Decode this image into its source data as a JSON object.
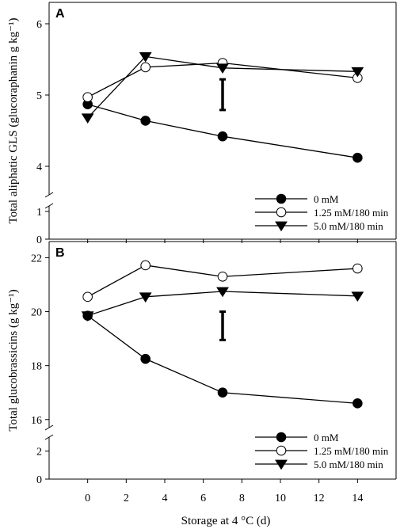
{
  "figure": {
    "xlabel": "Storage at 4 °C (d)",
    "xticks": [
      "0",
      "2",
      "4",
      "6",
      "8",
      "10",
      "12",
      "14"
    ]
  },
  "chart_data": [
    {
      "type": "line",
      "panel_label": "A",
      "ylabel": "Total aliphatic GLS (glucoraphanin g kg⁻¹)",
      "xlim": [
        -2,
        16
      ],
      "ylim_upper": [
        3.6,
        6.3
      ],
      "ylim_lower": [
        0,
        1.2
      ],
      "axis_break": true,
      "yticks_upper": [
        "4",
        "5",
        "6"
      ],
      "yticks_lower": [
        "0",
        "1"
      ],
      "x": [
        0,
        3,
        7,
        14
      ],
      "series": [
        {
          "name": "0 mM",
          "marker": "filled-circle",
          "values": [
            4.87,
            4.64,
            4.42,
            4.12
          ]
        },
        {
          "name": "1.25 mM/180 min",
          "marker": "open-circle",
          "values": [
            4.97,
            5.39,
            5.45,
            5.24
          ]
        },
        {
          "name": "5.0 mM/180 min",
          "marker": "filled-triangle-down",
          "values": [
            4.68,
            5.54,
            5.38,
            5.33
          ]
        }
      ],
      "error_bar": {
        "x": 7,
        "low": 4.79,
        "high": 5.22
      },
      "legend_position": "bottom-right",
      "grid": false
    },
    {
      "type": "line",
      "panel_label": "B",
      "ylabel": "Total glucobrassicins (g kg⁻¹)",
      "xlim": [
        -2,
        16
      ],
      "ylim_upper": [
        15.7,
        22.6
      ],
      "ylim_lower": [
        0,
        3
      ],
      "axis_break": true,
      "yticks_upper": [
        "16",
        "18",
        "20",
        "22"
      ],
      "yticks_lower": [
        "0",
        "2"
      ],
      "x": [
        0,
        3,
        7,
        14
      ],
      "series": [
        {
          "name": "0 mM",
          "marker": "filled-circle",
          "values": [
            19.85,
            18.25,
            17.0,
            16.6
          ]
        },
        {
          "name": "1.25 mM/180 min",
          "marker": "open-circle",
          "values": [
            20.55,
            21.72,
            21.3,
            21.6
          ]
        },
        {
          "name": "5.0 mM/180 min",
          "marker": "filled-triangle-down",
          "values": [
            19.85,
            20.55,
            20.75,
            20.58
          ]
        }
      ],
      "error_bar": {
        "x": 7,
        "low": 18.95,
        "high": 20.0
      },
      "legend_position": "bottom-right",
      "grid": false
    }
  ]
}
